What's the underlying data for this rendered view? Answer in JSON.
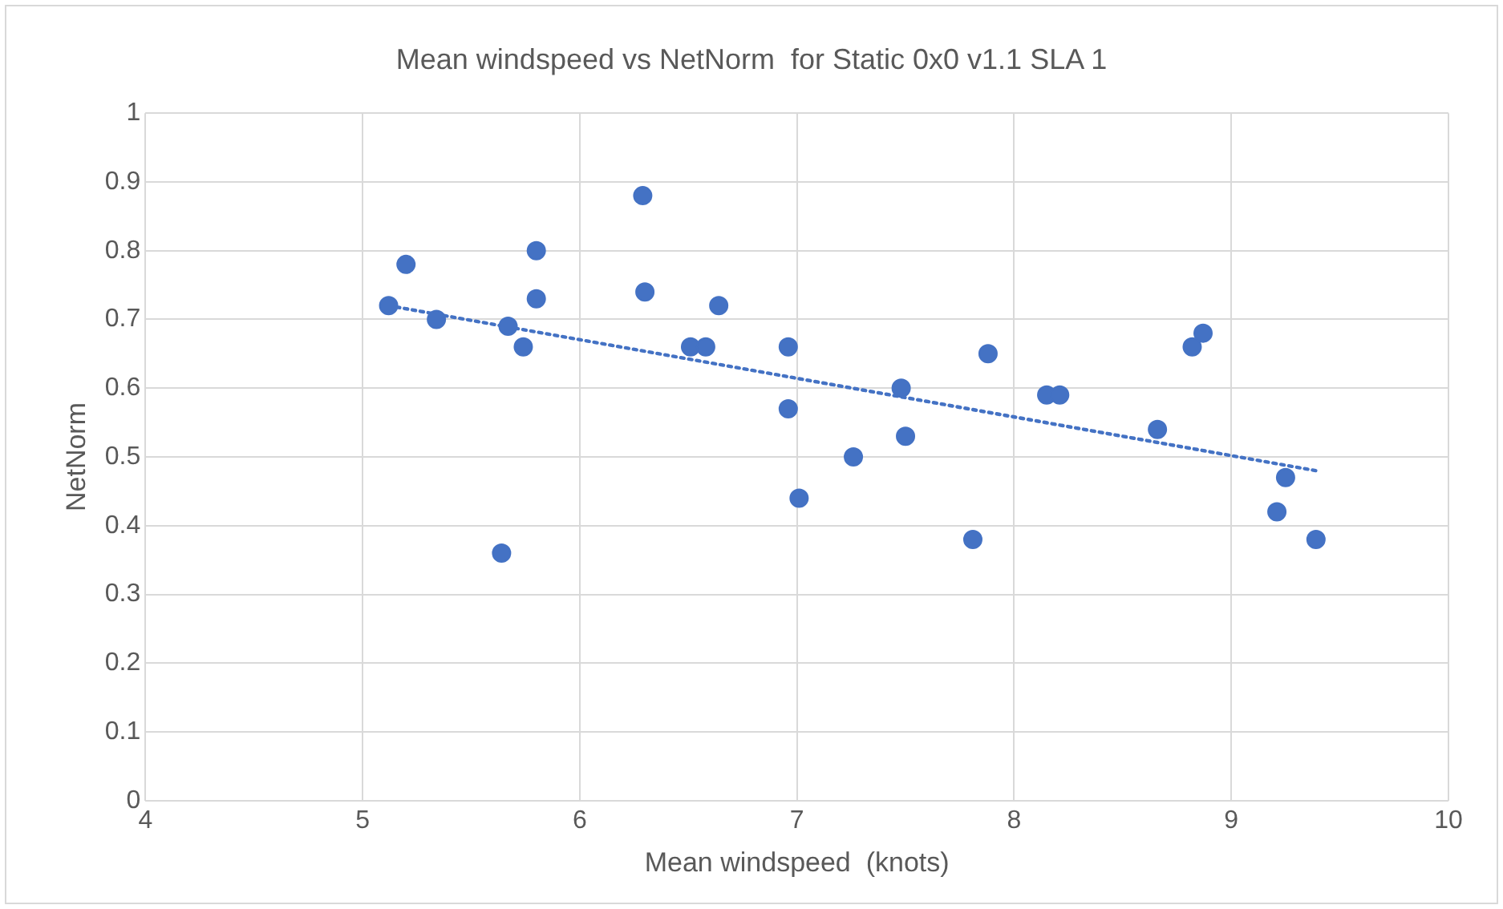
{
  "chart_data": {
    "type": "scatter",
    "title": "Mean windspeed vs NetNorm  for Static 0x0 v1.1 SLA 1",
    "xlabel": "Mean windspeed  (knots)",
    "ylabel": "NetNorm",
    "xlim": [
      4,
      10
    ],
    "xticks": [
      4,
      5,
      6,
      7,
      8,
      9,
      10
    ],
    "ylim": [
      0,
      1
    ],
    "yticks": [
      0,
      0.1,
      0.2,
      0.3,
      0.4,
      0.5,
      0.6,
      0.7,
      0.8,
      0.9,
      1
    ],
    "grid": true,
    "marker": "circle",
    "series": [
      {
        "color": "#4472c4",
        "x": [
          5.12,
          5.2,
          5.34,
          5.67,
          5.74,
          5.64,
          5.8,
          5.8,
          6.29,
          6.3,
          6.64,
          6.51,
          6.58,
          6.96,
          6.96,
          7.01,
          7.26,
          7.48,
          7.5,
          7.81,
          7.88,
          8.15,
          8.21,
          8.66,
          8.82,
          8.87,
          9.21,
          9.25,
          9.39
        ],
        "values": [
          0.72,
          0.78,
          0.7,
          0.69,
          0.66,
          0.36,
          0.8,
          0.73,
          0.88,
          0.74,
          0.72,
          0.66,
          0.66,
          0.66,
          0.57,
          0.44,
          0.5,
          0.6,
          0.53,
          0.38,
          0.65,
          0.59,
          0.59,
          0.54,
          0.66,
          0.68,
          0.42,
          0.47,
          0.38
        ]
      },
      {
        "type": "line",
        "color": "#4472c4",
        "line_style": "dotted",
        "marker": "none",
        "x": [
          5.12,
          9.39
        ],
        "values": [
          0.72,
          0.48
        ]
      }
    ]
  }
}
